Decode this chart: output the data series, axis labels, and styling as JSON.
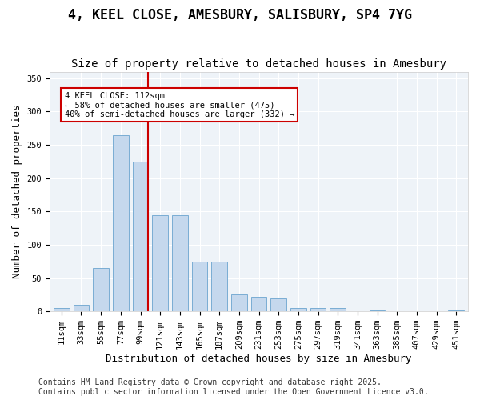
{
  "title": "4, KEEL CLOSE, AMESBURY, SALISBURY, SP4 7YG",
  "subtitle": "Size of property relative to detached houses in Amesbury",
  "xlabel": "Distribution of detached houses by size in Amesbury",
  "ylabel": "Number of detached properties",
  "bins": [
    "11sqm",
    "33sqm",
    "55sqm",
    "77sqm",
    "99sqm",
    "121sqm",
    "143sqm",
    "165sqm",
    "187sqm",
    "209sqm",
    "231sqm",
    "253sqm",
    "275sqm",
    "297sqm",
    "319sqm",
    "341sqm",
    "363sqm",
    "385sqm",
    "407sqm",
    "429sqm",
    "451sqm"
  ],
  "values": [
    5,
    10,
    65,
    265,
    225,
    145,
    145,
    75,
    75,
    25,
    22,
    20,
    5,
    5,
    5,
    0,
    1,
    0,
    0,
    0,
    1
  ],
  "bar_color": "#c5d8ed",
  "bar_edge_color": "#7aadd4",
  "vline_color": "#cc0000",
  "annotation_text": "4 KEEL CLOSE: 112sqm\n← 58% of detached houses are smaller (475)\n40% of semi-detached houses are larger (332) →",
  "annotation_box_color": "#ffffff",
  "annotation_box_edge": "#cc0000",
  "ylim": [
    0,
    360
  ],
  "yticks": [
    0,
    50,
    100,
    150,
    200,
    250,
    300,
    350
  ],
  "bg_color": "#eef3f8",
  "footer": "Contains HM Land Registry data © Crown copyright and database right 2025.\nContains public sector information licensed under the Open Government Licence v3.0.",
  "title_fontsize": 12,
  "subtitle_fontsize": 10,
  "xlabel_fontsize": 9,
  "ylabel_fontsize": 9,
  "tick_fontsize": 7.5,
  "footer_fontsize": 7
}
